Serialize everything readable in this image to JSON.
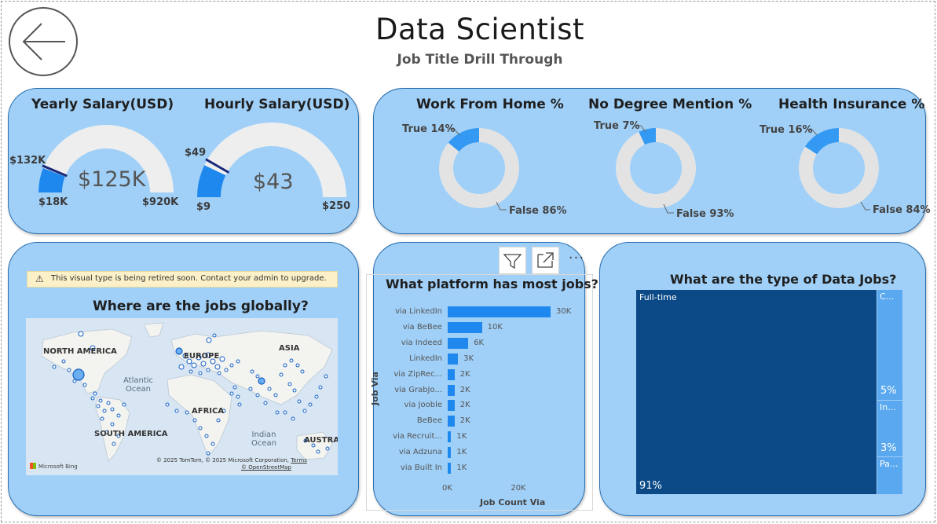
{
  "page": {
    "title": "Data Scientist",
    "subtitle": "Job Title Drill Through",
    "back_icon": "arrow-left-icon"
  },
  "salary": {
    "yearly": {
      "title": "Yearly Salary(USD)",
      "value": "$125K",
      "min": "$18K",
      "max": "$920K",
      "target": "$132K",
      "fill_fraction": 0.118,
      "target_fraction": 0.127
    },
    "hourly": {
      "title": "Hourly Salary(USD)",
      "value": "$43",
      "min": "$9",
      "max": "$250",
      "target": "$49",
      "fill_fraction": 0.141,
      "target_fraction": 0.166
    }
  },
  "donuts": [
    {
      "title": "Work From Home %",
      "true_label": "True 14%",
      "false_label": "False 86%",
      "true_fraction": 0.14
    },
    {
      "title": "No Degree Mention %",
      "true_label": "True 7%",
      "false_label": "False 93%",
      "true_fraction": 0.07
    },
    {
      "title": "Health Insurance %",
      "true_label": "True 16%",
      "false_label": "False 84%",
      "true_fraction": 0.16
    }
  ],
  "map_visual": {
    "warning": "This visual type is being retired soon. Contact your admin to upgrade.",
    "title": "Where are the jobs globally?",
    "continents": {
      "na": "NORTH AMERICA",
      "eu": "EUROPE",
      "asia": "ASIA",
      "africa": "AFRICA",
      "sa": "SOUTH AMERICA",
      "aus": "AUSTRA"
    },
    "oceans": {
      "atlantic": "Atlantic Ocean",
      "indian": "Indian Ocean"
    },
    "attribution": "© 2025 TomTom, © 2025 Microsoft Corporation,",
    "terms": "Terms",
    "osm": "© OpenStreetMap",
    "provider": "Microsoft Bing"
  },
  "platform_visual": {
    "filter_icon": "filter-icon",
    "focus_icon": "focus-mode-icon",
    "more_label": "···"
  },
  "treemap": {
    "title": "What are the type of Data Jobs?",
    "blocks": [
      {
        "label": "Full-time",
        "pct": "91%"
      },
      {
        "label": "C...",
        "pct": "5%"
      },
      {
        "label": "In...",
        "pct": "3%"
      },
      {
        "label": "Pa...",
        "pct": ""
      }
    ]
  },
  "chart_data": {
    "type": "bar",
    "orientation": "horizontal",
    "title": "What platform has most jobs?",
    "xlabel": "Job Count Via",
    "ylabel": "Job Via",
    "categories": [
      "via LinkedIn",
      "via BeBee",
      "via Indeed",
      "LinkedIn",
      "via ZipRec...",
      "via GrabJo...",
      "via Jooble",
      "BeBee",
      "via Recruit...",
      "via Adzuna",
      "via Built In"
    ],
    "values": [
      30000,
      10000,
      6000,
      3000,
      2000,
      2000,
      2000,
      2000,
      1000,
      1000,
      1000
    ],
    "value_labels": [
      "30K",
      "10K",
      "6K",
      "3K",
      "2K",
      "2K",
      "2K",
      "2K",
      "1K",
      "1K",
      "1K"
    ],
    "xlim": [
      0,
      30000
    ],
    "xticks": [
      0,
      20000
    ],
    "xtick_labels": [
      "0K",
      "20K"
    ],
    "grid": false,
    "color": "#1e88ee"
  }
}
